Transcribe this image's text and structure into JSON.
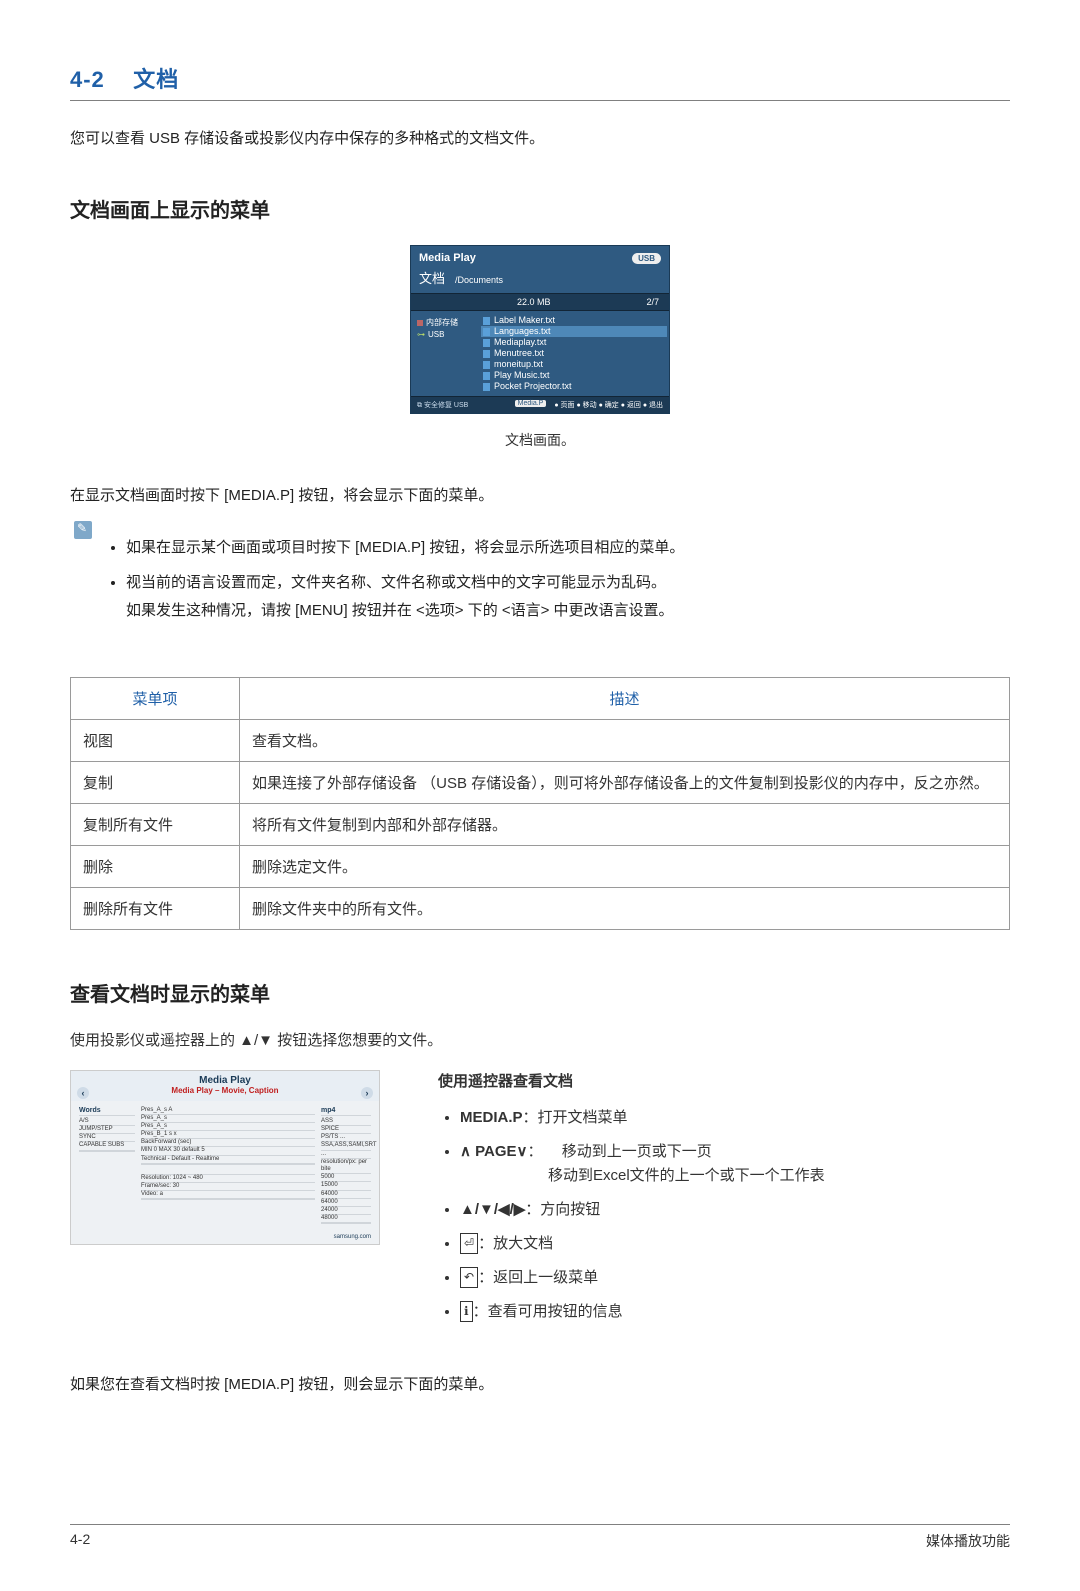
{
  "header": {
    "section_no": "4-2",
    "section_title": "文档"
  },
  "intro": "您可以查看 USB 存储设备或投影仪内存中保存的多种格式的文档文件。",
  "sub1": "文档画面上显示的菜单",
  "mediaplay": {
    "title": "Media Play",
    "usb_badge": "USB",
    "bc_big": "文档",
    "bc_path": "/Documents",
    "size": "22.0 MB",
    "page": "2/7",
    "side_internal": "内部存储",
    "side_usb": "USB",
    "files": [
      "Label Maker.txt",
      "Languages.txt",
      "Mediaplay.txt",
      "Menutree.txt",
      "moneitup.txt",
      "Play Music.txt",
      "Pocket Projector.txt"
    ],
    "files_sel_index": 1,
    "footer_left": "安全修复 USB",
    "footer_pill": "Media.P",
    "footer_items": [
      "页面",
      "移动",
      "确定",
      "返回",
      "退出"
    ]
  },
  "mp_caption": "文档画面。",
  "body1": "在显示文档画面时按下 [MEDIA.P] 按钮，将会显示下面的菜单。",
  "notes": [
    "如果在显示某个画面或项目时按下 [MEDIA.P] 按钮，将会显示所选项目相应的菜单。",
    "视当前的语言设置而定，文件夹名称、文件名称或文档中的文字可能显示为乱码。\n如果发生这种情况，请按 [MENU] 按钮并在 <选项> 下的 <语言> 中更改语言设置。"
  ],
  "table": {
    "headers": [
      "菜单项",
      "描述"
    ],
    "rows": [
      [
        "视图",
        "查看文档。"
      ],
      [
        "复制",
        "如果连接了外部存储设备 （USB 存储设备），则可将外部存储设备上的文件复制到投影仪的内存中，反之亦然。"
      ],
      [
        "复制所有文件",
        "将所有文件复制到内部和外部存储器。"
      ],
      [
        "删除",
        "删除选定文件。"
      ],
      [
        "删除所有文件",
        "删除文件夹中的所有文件。"
      ]
    ]
  },
  "sub2": "查看文档时显示的菜单",
  "sub2_intro": "使用投影仪或遥控器上的 ▲/▼ 按钮选择您想要的文件。",
  "preview": {
    "title": "Media Play",
    "subtitle": "Media Play – Movie, Caption",
    "left_head": "Words",
    "left_lines": [
      "A/S",
      "JUMP/STEP",
      "SYNC",
      "CAPABLE SUBS"
    ],
    "mid_top": [
      "Pres_A_s A",
      "Pres_A_s",
      "Pres_A_s",
      "Pres_B_1 s x",
      "BackForward (sec)",
      "MIN 0 MAX 30 default 5",
      "Technical - Default - Realtime"
    ],
    "mid_bot": [
      "Resolution: 1024 ~ 480",
      "Frame/sec: 30",
      "Video: a"
    ],
    "right_head": "mp4",
    "right_lines": [
      "ASS",
      "SPICE",
      "PS/TS ...",
      "SSA,ASS,SAMI,SRT",
      "...",
      "resolution/px: per bite",
      "5000",
      "15000",
      "64000",
      "64000",
      "24000",
      "48000"
    ],
    "foot_right": "samsung.com"
  },
  "remote": {
    "title": "使用遥控器查看文档",
    "items": [
      {
        "label": "MEDIA.P",
        "text": "：打开文档菜单"
      },
      {
        "label": "∧ PAGE∨",
        "text": "： 　移动到上一页或下一页",
        "indent": "移动到Excel文件的上一个或下一个工作表"
      },
      {
        "label": "▲/▼/◀/▶",
        "text": "：方向按钮"
      },
      {
        "icon": "⏎",
        "text": "：放大文档"
      },
      {
        "icon": "↶",
        "text": "：返回上一级菜单"
      },
      {
        "icon": "ℹ",
        "text": "：查看可用按钮的信息"
      }
    ]
  },
  "bottom_text": "如果您在查看文档时按 [MEDIA.P] 按钮，则会显示下面的菜单。",
  "footer": {
    "left": "4-2",
    "right": "媒体播放功能"
  }
}
